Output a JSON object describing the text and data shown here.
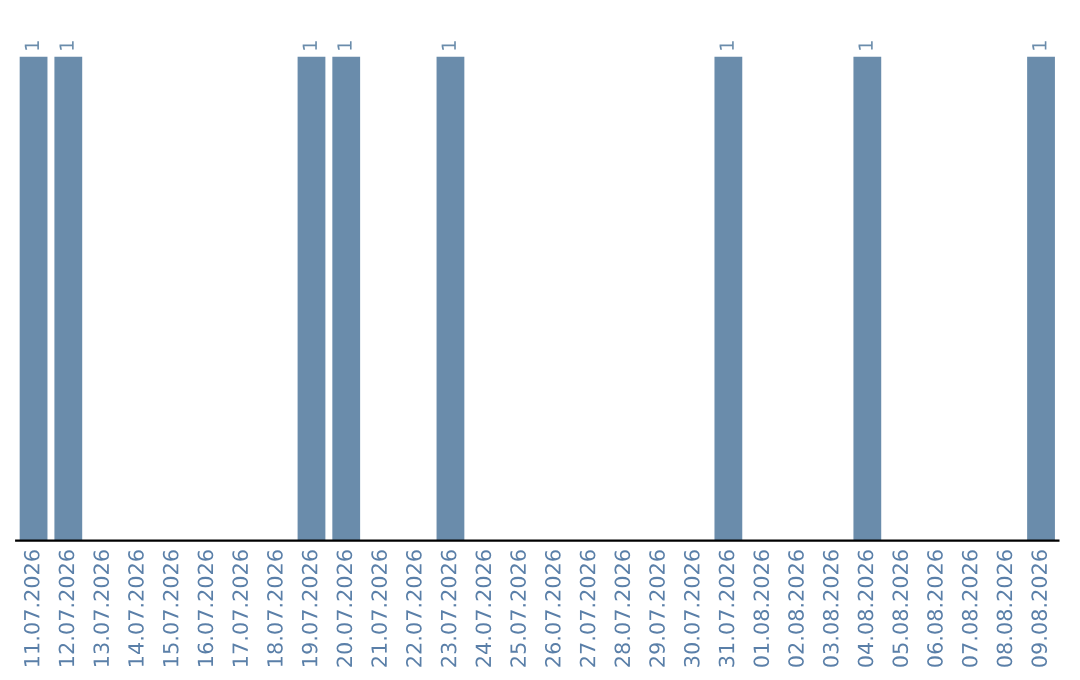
{
  "chart_data": {
    "type": "bar",
    "categories": [
      "11.07.2026",
      "12.07.2026",
      "13.07.2026",
      "14.07.2026",
      "15.07.2026",
      "16.07.2026",
      "17.07.2026",
      "18.07.2026",
      "19.07.2026",
      "20.07.2026",
      "21.07.2026",
      "22.07.2026",
      "23.07.2026",
      "24.07.2026",
      "25.07.2026",
      "26.07.2026",
      "27.07.2026",
      "28.07.2026",
      "29.07.2026",
      "30.07.2026",
      "31.07.2026",
      "01.08.2026",
      "02.08.2026",
      "03.08.2026",
      "04.08.2026",
      "05.08.2026",
      "06.08.2026",
      "07.08.2026",
      "08.08.2026",
      "09.08.2026"
    ],
    "values": [
      1,
      1,
      0,
      0,
      0,
      0,
      0,
      0,
      1,
      1,
      0,
      0,
      1,
      0,
      0,
      0,
      0,
      0,
      0,
      0,
      1,
      0,
      0,
      0,
      1,
      0,
      0,
      0,
      0,
      1
    ],
    "value_labels": [
      "1",
      "1",
      null,
      null,
      null,
      null,
      null,
      null,
      "1",
      "1",
      null,
      null,
      "1",
      null,
      null,
      null,
      null,
      null,
      null,
      null,
      "1",
      null,
      null,
      null,
      "1",
      null,
      null,
      null,
      null,
      "1"
    ],
    "color": "#6a8cab",
    "ylim": [
      0,
      1
    ],
    "grid": false,
    "legend": false
  }
}
